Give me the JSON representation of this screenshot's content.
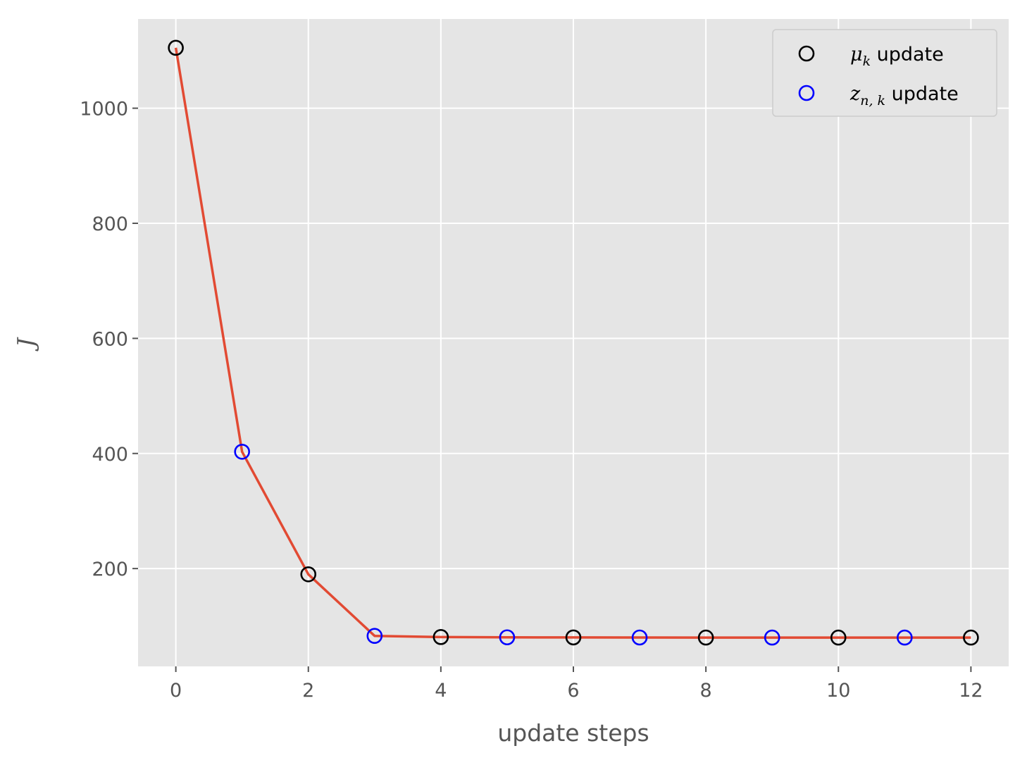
{
  "chart_data": {
    "type": "line",
    "xlabel": "update steps",
    "ylabel": "J",
    "xlim": [
      -0.57,
      12.57
    ],
    "ylim": [
      30,
      1155
    ],
    "xticks": [
      0,
      2,
      4,
      6,
      8,
      10,
      12
    ],
    "yticks": [
      200,
      400,
      600,
      800,
      1000
    ],
    "grid": true,
    "legend_position": "top-right",
    "line": {
      "x": [
        0,
        1,
        2,
        3,
        4,
        5,
        6,
        7,
        8,
        9,
        10,
        11,
        12
      ],
      "y": [
        1105,
        403,
        190,
        83,
        81,
        80.5,
        80.3,
        80.2,
        80.1,
        80.1,
        80.1,
        80.1,
        80.1
      ],
      "color": "#E24A33"
    },
    "series": [
      {
        "name": "μ_k update",
        "legend_symbol": "μ",
        "legend_subscript": "k",
        "legend_suffix": " update",
        "marker": "open-circle",
        "color": "#000000",
        "x": [
          0,
          2,
          4,
          6,
          8,
          10,
          12
        ],
        "y": [
          1105,
          190,
          81,
          80.3,
          80.1,
          80.1,
          80.1
        ]
      },
      {
        "name": "z_n,k update",
        "legend_symbol": "z",
        "legend_subscript": "n, k",
        "legend_suffix": " update",
        "marker": "open-circle",
        "color": "#0000FF",
        "x": [
          1,
          3,
          5,
          7,
          9,
          11
        ],
        "y": [
          403,
          83,
          80.5,
          80.2,
          80.1,
          80.1
        ]
      }
    ],
    "colors": {
      "plot_background": "#E5E5E5",
      "grid": "#FFFFFF",
      "tick_label": "#555555"
    }
  }
}
